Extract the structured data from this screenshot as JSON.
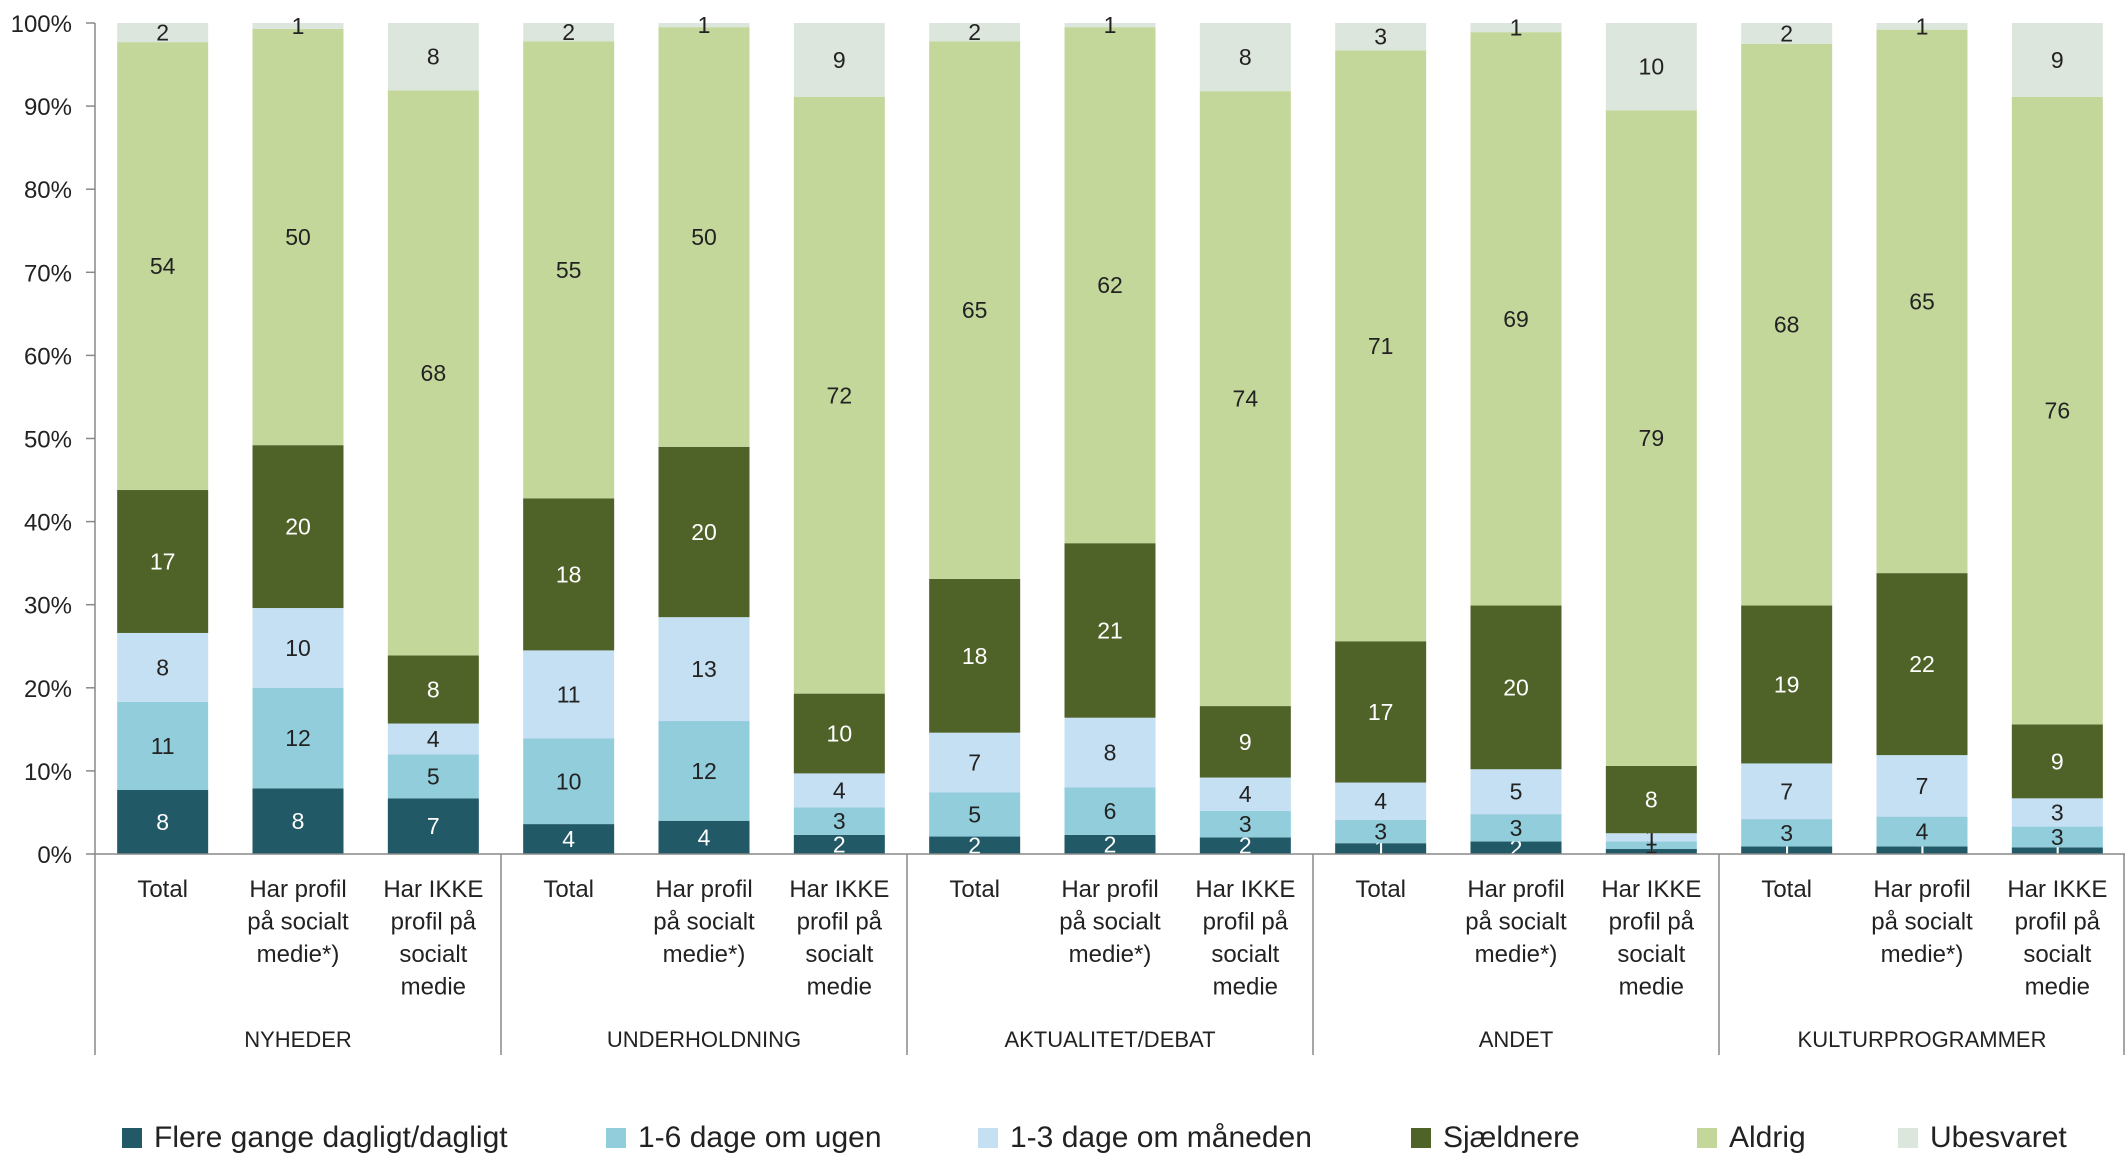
{
  "chart_data": {
    "type": "bar",
    "stacked": true,
    "percent_stacked": true,
    "y_axis": {
      "min": 0,
      "max": 100,
      "step": 10,
      "tick_labels": [
        "0%",
        "10%",
        "20%",
        "30%",
        "40%",
        "50%",
        "60%",
        "70%",
        "80%",
        "90%",
        "100%"
      ]
    },
    "grid": false,
    "legend_position": "bottom",
    "groups": [
      {
        "label": "NYHEDER"
      },
      {
        "label": "UNDERHOLDNING"
      },
      {
        "label": "AKTUALITET/DEBAT"
      },
      {
        "label": "ANDET"
      },
      {
        "label": "KULTURPROGRAMMER"
      }
    ],
    "subcategory_labels": [
      [
        "Total"
      ],
      [
        "Har profil",
        "på socialt",
        "medie*)"
      ],
      [
        "Har IKKE",
        "profil på",
        "socialt",
        "medie"
      ]
    ],
    "categories": [
      "NYHEDER | Total",
      "NYHEDER | Har profil på socialt medie*)",
      "NYHEDER | Har IKKE profil på socialt medie",
      "UNDERHOLDNING | Total",
      "UNDERHOLDNING | Har profil på socialt medie*)",
      "UNDERHOLDNING | Har IKKE profil på socialt medie",
      "AKTUALITET/DEBAT | Total",
      "AKTUALITET/DEBAT | Har profil på socialt medie*)",
      "AKTUALITET/DEBAT | Har IKKE profil på socialt medie",
      "ANDET | Total",
      "ANDET | Har profil på socialt medie*)",
      "ANDET | Har IKKE profil på socialt medie",
      "KULTURPROGRAMMER | Total",
      "KULTURPROGRAMMER | Har profil på socialt medie*)",
      "KULTURPROGRAMMER | Har IKKE profil på socialt medie"
    ],
    "series": [
      {
        "name": "Flere gange dagligt/dagligt",
        "color": "#215967",
        "label_color": "#ffffff",
        "values": [
          7.7,
          7.9,
          6.7,
          3.6,
          4.0,
          2.3,
          2.1,
          2.3,
          2.0,
          1.3,
          1.5,
          0.6,
          0.9,
          0.9,
          0.8
        ],
        "labels": [
          "8",
          "8",
          "7",
          "4",
          "4",
          "2",
          "2",
          "2",
          "2",
          "1",
          "2",
          "1",
          "1",
          "1",
          "1"
        ]
      },
      {
        "name": "1-6 dage om ugen",
        "color": "#92cddc",
        "label_color": "#222222",
        "values": [
          10.6,
          12.1,
          5.3,
          10.3,
          12.0,
          3.3,
          5.3,
          5.7,
          3.2,
          2.8,
          3.3,
          0.9,
          3.3,
          3.6,
          2.5
        ],
        "labels": [
          "11",
          "12",
          "5",
          "10",
          "12",
          "3",
          "5",
          "6",
          "3",
          "3",
          "3",
          "1",
          "3",
          "4",
          "3"
        ]
      },
      {
        "name": "1-3 dage om måneden",
        "color": "#c5e0f2",
        "label_color": "#222222",
        "values": [
          8.3,
          9.6,
          3.7,
          10.6,
          12.5,
          4.1,
          7.2,
          8.4,
          4.0,
          4.5,
          5.4,
          1.0,
          6.7,
          7.4,
          3.4
        ],
        "labels": [
          "8",
          "10",
          "4",
          "11",
          "13",
          "4",
          "7",
          "8",
          "4",
          "4",
          "5",
          "1",
          "7",
          "7",
          "3"
        ]
      },
      {
        "name": "Sjældnere",
        "color": "#4f6228",
        "label_color": "#ffffff",
        "values": [
          17.2,
          19.6,
          8.2,
          18.3,
          20.5,
          9.6,
          18.5,
          21.0,
          8.6,
          17.0,
          19.7,
          8.1,
          19.0,
          21.9,
          8.9
        ],
        "labels": [
          "17",
          "20",
          "8",
          "18",
          "20",
          "10",
          "18",
          "21",
          "9",
          "17",
          "20",
          "8",
          "19",
          "22",
          "9"
        ]
      },
      {
        "name": "Aldrig",
        "color": "#c4d79b",
        "label_color": "#222222",
        "values": [
          53.9,
          50.1,
          68.0,
          55.0,
          50.5,
          71.8,
          64.7,
          62.1,
          74.0,
          71.1,
          69.0,
          78.9,
          67.6,
          65.4,
          75.5
        ],
        "labels": [
          "54",
          "50",
          "68",
          "55",
          "50",
          "72",
          "65",
          "62",
          "74",
          "71",
          "69",
          "79",
          "68",
          "65",
          "76"
        ]
      },
      {
        "name": "Ubesvaret",
        "color": "#dce6dd",
        "label_color": "#222222",
        "values": [
          2.3,
          0.7,
          8.1,
          2.2,
          0.5,
          8.9,
          2.2,
          0.5,
          8.2,
          3.3,
          1.1,
          10.5,
          2.5,
          0.8,
          8.9
        ],
        "labels": [
          "2",
          "1",
          "8",
          "2",
          "1",
          "9",
          "2",
          "1",
          "8",
          "3",
          "1",
          "10",
          "2",
          "1",
          "9"
        ]
      }
    ]
  }
}
